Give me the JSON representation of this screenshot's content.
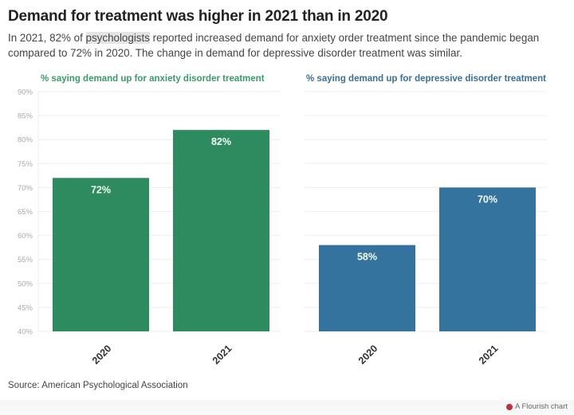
{
  "header": {
    "title": "Demand for treatment was higher in 2021 than in 2020",
    "subtitle_before": "In 2021, 82% of ",
    "subtitle_highlight": "psychologists",
    "subtitle_after": " reported increased demand for anxiety order treatment since the pandemic began compared to 72% in 2020. The change in demand for depressive disorder treatment was similar."
  },
  "colors": {
    "anxiety": "#2e8b5f",
    "anxiety_title": "#3a9a6a",
    "depressive": "#35739f",
    "depressive_title": "#3a6f98"
  },
  "chart_data": [
    {
      "type": "bar",
      "title": "% saying demand up for anxiety disorder treatment",
      "categories": [
        "2020",
        "2021"
      ],
      "values": [
        72,
        82
      ],
      "labels": [
        "72%",
        "82%"
      ],
      "ylim": [
        40,
        90
      ],
      "yticks": [
        "40%",
        "45%",
        "50%",
        "55%",
        "60%",
        "65%",
        "70%",
        "75%",
        "80%",
        "85%",
        "90%"
      ],
      "grid": true,
      "xlabel": "",
      "ylabel": ""
    },
    {
      "type": "bar",
      "title": "% saying demand up for depressive disorder treatment",
      "categories": [
        "2020",
        "2021"
      ],
      "values": [
        58,
        70
      ],
      "labels": [
        "58%",
        "70%"
      ],
      "ylim": [
        40,
        90
      ],
      "grid": true,
      "xlabel": "",
      "ylabel": ""
    }
  ],
  "footer": {
    "source": "Source: American Psychological Association",
    "credit": "A Flourish chart",
    "credit_icon": "flourish-logo-icon"
  }
}
